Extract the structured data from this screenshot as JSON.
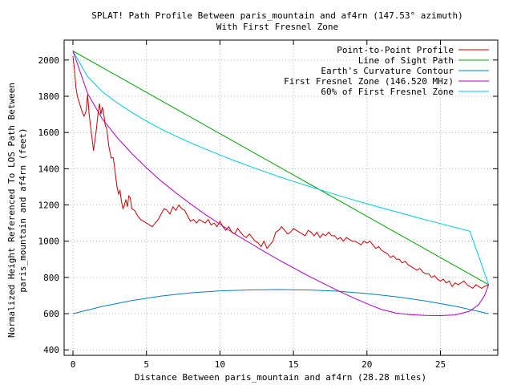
{
  "chart_data": {
    "type": "line",
    "title": "SPLAT! Path Profile Between paris_mountain and af4rn (147.53° azimuth)",
    "subtitle": "With First Fresnel Zone",
    "xlabel": "Distance Between paris_mountain and af4rn (28.28 miles)",
    "ylabel_line1": "Normalized Height Referenced To LOS Path Between",
    "ylabel_line2": "paris_mountain and af4rn (feet)",
    "xlim": [
      -0.6,
      28.9
    ],
    "ylim": [
      370,
      2110
    ],
    "x_ticks": [
      0,
      5,
      10,
      15,
      20,
      25
    ],
    "y_ticks": [
      400,
      600,
      800,
      1000,
      1200,
      1400,
      1600,
      1800,
      2000
    ],
    "x_tick_labels": [
      "0",
      "5",
      "10",
      "15",
      "20",
      "25"
    ],
    "y_tick_labels": [
      "400",
      "600",
      "800",
      "1000",
      "1200",
      "1400",
      "1600",
      "1800",
      "2000"
    ],
    "grid": true,
    "legend_position": "top-right",
    "series": [
      {
        "name": "Point-to-Point Profile",
        "color": "#cc0000",
        "points": [
          [
            0,
            2020
          ],
          [
            0.1,
            1950
          ],
          [
            0.2,
            1850
          ],
          [
            0.3,
            1800
          ],
          [
            0.45,
            1760
          ],
          [
            0.6,
            1720
          ],
          [
            0.75,
            1690
          ],
          [
            0.9,
            1720
          ],
          [
            1.0,
            1810
          ],
          [
            1.1,
            1700
          ],
          [
            1.25,
            1600
          ],
          [
            1.4,
            1500
          ],
          [
            1.5,
            1560
          ],
          [
            1.6,
            1620
          ],
          [
            1.7,
            1700
          ],
          [
            1.8,
            1760
          ],
          [
            1.9,
            1700
          ],
          [
            2.0,
            1740
          ],
          [
            2.1,
            1700
          ],
          [
            2.2,
            1640
          ],
          [
            2.3,
            1620
          ],
          [
            2.45,
            1520
          ],
          [
            2.6,
            1460
          ],
          [
            2.75,
            1460
          ],
          [
            2.9,
            1360
          ],
          [
            3.0,
            1300
          ],
          [
            3.1,
            1260
          ],
          [
            3.2,
            1280
          ],
          [
            3.3,
            1220
          ],
          [
            3.4,
            1180
          ],
          [
            3.5,
            1200
          ],
          [
            3.6,
            1230
          ],
          [
            3.7,
            1190
          ],
          [
            3.8,
            1250
          ],
          [
            3.9,
            1240
          ],
          [
            4.0,
            1180
          ],
          [
            4.2,
            1170
          ],
          [
            4.4,
            1140
          ],
          [
            4.6,
            1120
          ],
          [
            4.8,
            1110
          ],
          [
            5.0,
            1100
          ],
          [
            5.2,
            1090
          ],
          [
            5.4,
            1080
          ],
          [
            5.6,
            1100
          ],
          [
            5.8,
            1120
          ],
          [
            6.0,
            1150
          ],
          [
            6.2,
            1180
          ],
          [
            6.4,
            1170
          ],
          [
            6.6,
            1150
          ],
          [
            6.8,
            1190
          ],
          [
            7.0,
            1170
          ],
          [
            7.2,
            1200
          ],
          [
            7.4,
            1180
          ],
          [
            7.6,
            1170
          ],
          [
            7.8,
            1140
          ],
          [
            8.0,
            1110
          ],
          [
            8.2,
            1120
          ],
          [
            8.4,
            1100
          ],
          [
            8.6,
            1120
          ],
          [
            8.8,
            1110
          ],
          [
            9.0,
            1100
          ],
          [
            9.2,
            1120
          ],
          [
            9.4,
            1090
          ],
          [
            9.6,
            1100
          ],
          [
            9.8,
            1080
          ],
          [
            10.0,
            1110
          ],
          [
            10.2,
            1080
          ],
          [
            10.4,
            1060
          ],
          [
            10.6,
            1080
          ],
          [
            10.8,
            1050
          ],
          [
            11.0,
            1040
          ],
          [
            11.2,
            1070
          ],
          [
            11.4,
            1050
          ],
          [
            11.6,
            1030
          ],
          [
            11.8,
            1020
          ],
          [
            12.0,
            1040
          ],
          [
            12.2,
            1020
          ],
          [
            12.4,
            1000
          ],
          [
            12.6,
            990
          ],
          [
            12.8,
            970
          ],
          [
            13.0,
            1000
          ],
          [
            13.2,
            960
          ],
          [
            13.4,
            980
          ],
          [
            13.6,
            1000
          ],
          [
            13.8,
            1050
          ],
          [
            14.0,
            1060
          ],
          [
            14.2,
            1080
          ],
          [
            14.4,
            1060
          ],
          [
            14.6,
            1040
          ],
          [
            14.8,
            1050
          ],
          [
            15.0,
            1070
          ],
          [
            15.2,
            1060
          ],
          [
            15.4,
            1050
          ],
          [
            15.6,
            1040
          ],
          [
            15.8,
            1030
          ],
          [
            16.0,
            1060
          ],
          [
            16.2,
            1050
          ],
          [
            16.4,
            1030
          ],
          [
            16.6,
            1050
          ],
          [
            16.8,
            1020
          ],
          [
            17.0,
            1040
          ],
          [
            17.2,
            1030
          ],
          [
            17.4,
            1050
          ],
          [
            17.6,
            1030
          ],
          [
            17.8,
            1030
          ],
          [
            18.0,
            1010
          ],
          [
            18.2,
            1020
          ],
          [
            18.4,
            1000
          ],
          [
            18.6,
            1020
          ],
          [
            18.8,
            1010
          ],
          [
            19.0,
            1000
          ],
          [
            19.2,
            1000
          ],
          [
            19.4,
            990
          ],
          [
            19.6,
            980
          ],
          [
            19.8,
            1000
          ],
          [
            20.0,
            990
          ],
          [
            20.2,
            1000
          ],
          [
            20.4,
            980
          ],
          [
            20.6,
            960
          ],
          [
            20.8,
            970
          ],
          [
            21.0,
            950
          ],
          [
            21.2,
            940
          ],
          [
            21.4,
            930
          ],
          [
            21.6,
            910
          ],
          [
            21.8,
            920
          ],
          [
            22.0,
            900
          ],
          [
            22.2,
            900
          ],
          [
            22.4,
            880
          ],
          [
            22.6,
            890
          ],
          [
            22.8,
            870
          ],
          [
            23.0,
            860
          ],
          [
            23.2,
            850
          ],
          [
            23.4,
            840
          ],
          [
            23.6,
            850
          ],
          [
            23.8,
            830
          ],
          [
            24.0,
            820
          ],
          [
            24.2,
            820
          ],
          [
            24.4,
            800
          ],
          [
            24.6,
            810
          ],
          [
            24.8,
            790
          ],
          [
            25.0,
            780
          ],
          [
            25.2,
            790
          ],
          [
            25.4,
            770
          ],
          [
            25.6,
            780
          ],
          [
            25.8,
            750
          ],
          [
            26.0,
            770
          ],
          [
            26.2,
            760
          ],
          [
            26.4,
            770
          ],
          [
            26.6,
            780
          ],
          [
            26.8,
            760
          ],
          [
            27.0,
            750
          ],
          [
            27.2,
            740
          ],
          [
            27.4,
            760
          ],
          [
            27.6,
            750
          ],
          [
            27.8,
            740
          ],
          [
            28.0,
            750
          ],
          [
            28.28,
            760
          ]
        ]
      },
      {
        "name": "Line of Sight Path",
        "color": "#00a000",
        "points": [
          [
            0,
            2050
          ],
          [
            28.28,
            760
          ]
        ]
      },
      {
        "name": "Earth's Curvature Contour",
        "color": "#0080c0",
        "points": [
          [
            0,
            600
          ],
          [
            2,
            640
          ],
          [
            4,
            672
          ],
          [
            6,
            697
          ],
          [
            8,
            715
          ],
          [
            10,
            726
          ],
          [
            12,
            731
          ],
          [
            14,
            733
          ],
          [
            16,
            731
          ],
          [
            18,
            724
          ],
          [
            20,
            711
          ],
          [
            22,
            693
          ],
          [
            24,
            670
          ],
          [
            26,
            641
          ],
          [
            28.28,
            600
          ]
        ]
      },
      {
        "name": "First Fresnel Zone (146.520 MHz)",
        "color": "#b000c0",
        "points": [
          [
            0,
            2050
          ],
          [
            1,
            1815
          ],
          [
            2,
            1675
          ],
          [
            3,
            1573
          ],
          [
            4,
            1484
          ],
          [
            5,
            1405
          ],
          [
            6,
            1332
          ],
          [
            7,
            1267
          ],
          [
            8,
            1206
          ],
          [
            9,
            1148
          ],
          [
            10,
            1094
          ],
          [
            11,
            1041
          ],
          [
            12,
            992
          ],
          [
            13,
            944
          ],
          [
            14,
            897
          ],
          [
            15,
            853
          ],
          [
            16,
            809
          ],
          [
            17,
            768
          ],
          [
            18,
            728
          ],
          [
            19,
            690
          ],
          [
            20,
            655
          ],
          [
            21,
            623
          ],
          [
            22,
            603
          ],
          [
            23,
            594
          ],
          [
            24,
            590
          ],
          [
            25,
            589
          ],
          [
            26,
            593
          ],
          [
            27,
            614
          ],
          [
            27.6,
            650
          ],
          [
            28.0,
            700
          ],
          [
            28.28,
            760
          ]
        ]
      },
      {
        "name": "60% of First Fresnel Zone",
        "color": "#00c8e0",
        "points": [
          [
            0,
            2050
          ],
          [
            1,
            1909
          ],
          [
            2,
            1825
          ],
          [
            3,
            1764
          ],
          [
            4,
            1711
          ],
          [
            5,
            1663
          ],
          [
            6,
            1619
          ],
          [
            7,
            1580
          ],
          [
            8,
            1543
          ],
          [
            9,
            1509
          ],
          [
            10,
            1476
          ],
          [
            11,
            1444
          ],
          [
            12,
            1414
          ],
          [
            13,
            1385
          ],
          [
            14,
            1357
          ],
          [
            15,
            1330
          ],
          [
            16,
            1304
          ],
          [
            17,
            1279
          ],
          [
            18,
            1254
          ],
          [
            19,
            1230
          ],
          [
            20,
            1207
          ],
          [
            21,
            1184
          ],
          [
            22,
            1162
          ],
          [
            23,
            1140
          ],
          [
            24,
            1118
          ],
          [
            25,
            1097
          ],
          [
            26,
            1076
          ],
          [
            27,
            1055
          ],
          [
            28.28,
            760
          ]
        ]
      }
    ]
  }
}
